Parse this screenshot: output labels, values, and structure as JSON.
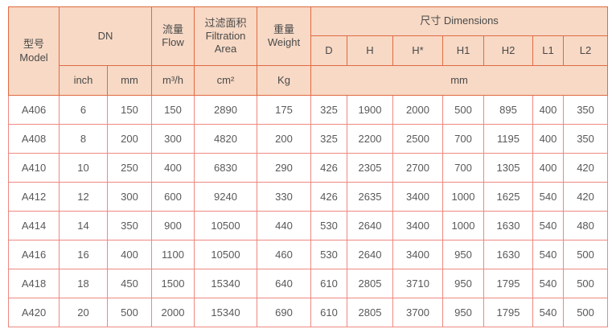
{
  "colors": {
    "header_bg": "#f7d9c5",
    "header_border": "#e06a42",
    "body_border": "#ee8880",
    "header_text": "#4a4a4a",
    "body_text": "#595959",
    "body_bg": "#ffffff"
  },
  "table": {
    "header": {
      "model_zh": "型号",
      "model_en": "Model",
      "dn": "DN",
      "flow_zh": "流量",
      "flow_en": "Flow",
      "filtration_zh": "过滤面积",
      "filtration_en": "Filtration Area",
      "weight_zh": "重量",
      "weight_en": "Weight",
      "dimensions_zh": "尺寸",
      "dimensions_en": "Dimensions",
      "dim_cols": [
        "D",
        "H",
        "H*",
        "H1",
        "H2",
        "L1",
        "L2"
      ],
      "unit_inch": "inch",
      "unit_mm": "mm",
      "unit_flow": "m³/h",
      "unit_area": "cm²",
      "unit_weight": "Kg",
      "unit_dimensions": "mm"
    },
    "columns": [
      "Model",
      "DN inch",
      "DN mm",
      "Flow m³/h",
      "Filtration Area cm²",
      "Weight Kg",
      "D",
      "H",
      "H*",
      "H1",
      "H2",
      "L1",
      "L2"
    ],
    "rows": [
      {
        "model": "A406",
        "values": [
          "6",
          "150",
          "150",
          "2890",
          "175",
          "325",
          "1900",
          "2000",
          "500",
          "895",
          "400",
          "350"
        ]
      },
      {
        "model": "A408",
        "values": [
          "8",
          "200",
          "300",
          "4820",
          "200",
          "325",
          "2200",
          "2500",
          "700",
          "1195",
          "400",
          "350"
        ]
      },
      {
        "model": "A410",
        "values": [
          "10",
          "250",
          "400",
          "6830",
          "290",
          "426",
          "2305",
          "2700",
          "700",
          "1305",
          "400",
          "420"
        ]
      },
      {
        "model": "A412",
        "values": [
          "12",
          "300",
          "600",
          "9240",
          "330",
          "426",
          "2635",
          "3400",
          "1000",
          "1625",
          "540",
          "420"
        ]
      },
      {
        "model": "A414",
        "values": [
          "14",
          "350",
          "900",
          "10500",
          "440",
          "530",
          "2640",
          "3400",
          "1000",
          "1630",
          "540",
          "480"
        ]
      },
      {
        "model": "A416",
        "values": [
          "16",
          "400",
          "1100",
          "10500",
          "460",
          "530",
          "2640",
          "3400",
          "950",
          "1630",
          "540",
          "500"
        ]
      },
      {
        "model": "A418",
        "values": [
          "18",
          "450",
          "1500",
          "15340",
          "640",
          "610",
          "2805",
          "3710",
          "950",
          "1795",
          "540",
          "500"
        ]
      },
      {
        "model": "A420",
        "values": [
          "20",
          "500",
          "2000",
          "15340",
          "690",
          "610",
          "2805",
          "3700",
          "950",
          "1795",
          "540",
          "500"
        ]
      }
    ]
  }
}
